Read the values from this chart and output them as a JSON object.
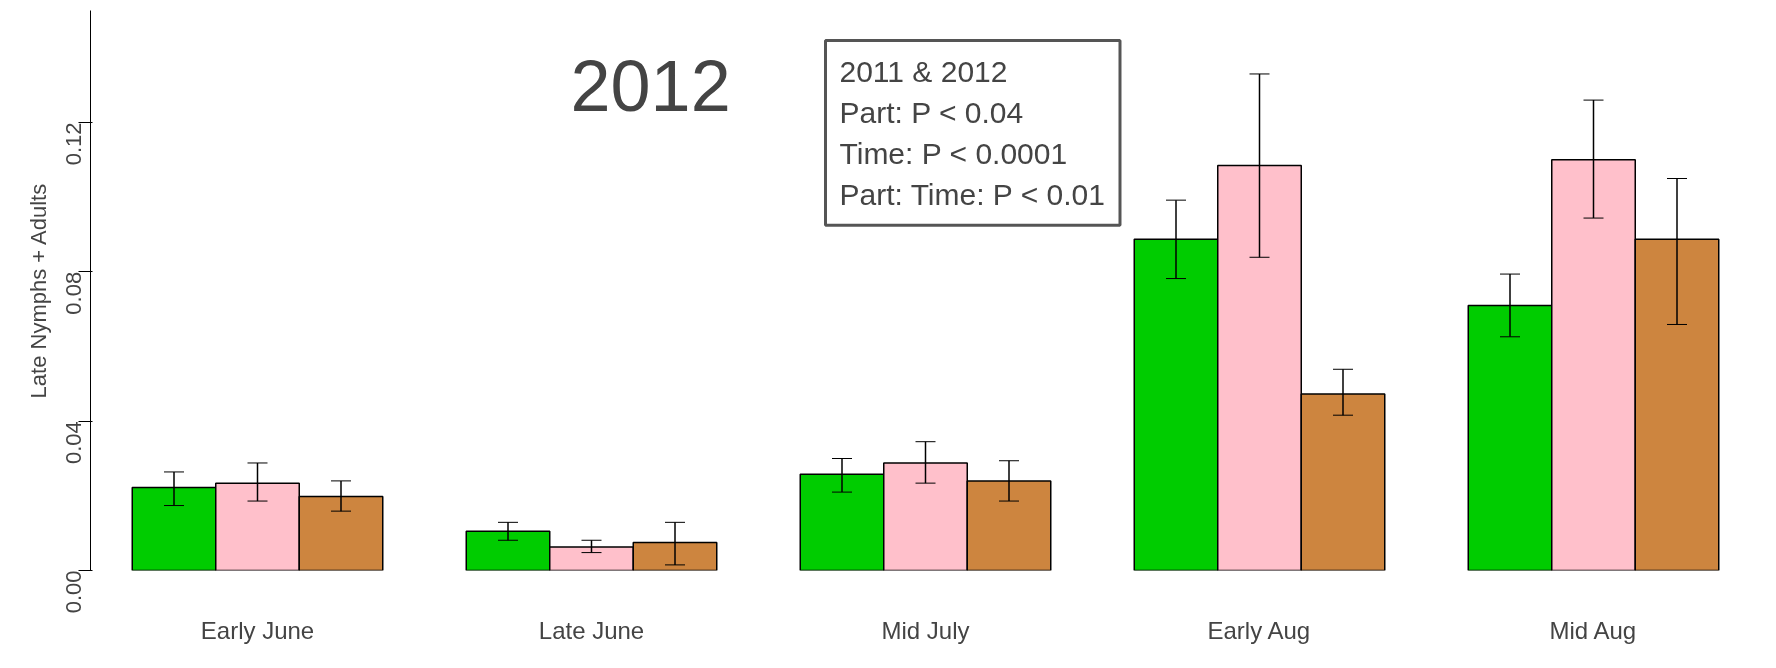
{
  "chart_data": {
    "type": "bar",
    "ylabel": "Late Nymphs + Adults",
    "categories": [
      "Early June",
      "Late June",
      "Mid July",
      "Early Aug",
      "Mid Aug"
    ],
    "series": [
      {
        "color": "#00cc00",
        "values": [
          0.0222,
          0.0105,
          0.0258,
          0.0887,
          0.071
        ],
        "errors": [
          [
            0.0174,
            0.0264
          ],
          [
            0.0081,
            0.0129
          ],
          [
            0.021,
            0.03
          ],
          [
            0.0782,
            0.0992
          ],
          [
            0.0626,
            0.0794
          ]
        ]
      },
      {
        "color": "#ffc0cb",
        "values": [
          0.0234,
          0.0063,
          0.0288,
          0.1085,
          0.11
        ],
        "errors": [
          [
            0.0186,
            0.0288
          ],
          [
            0.0048,
            0.0081
          ],
          [
            0.0234,
            0.0345
          ],
          [
            0.0839,
            0.133
          ],
          [
            0.0944,
            0.126
          ]
        ]
      },
      {
        "color": "#cd853f",
        "values": [
          0.0198,
          0.0075,
          0.024,
          0.0473,
          0.0887
        ],
        "errors": [
          [
            0.0159,
            0.024
          ],
          [
            0.0015,
            0.0129
          ],
          [
            0.0186,
            0.0294
          ],
          [
            0.0416,
            0.0539
          ],
          [
            0.0659,
            0.105
          ]
        ]
      }
    ],
    "ylim": [
      0,
      0.15
    ],
    "yticks": [
      {
        "value": 0,
        "label": "0.00"
      },
      {
        "value": 0.04,
        "label": "0.04"
      },
      {
        "value": 0.08,
        "label": "0.08"
      },
      {
        "value": 0.12,
        "label": "0.12"
      }
    ],
    "grid": false,
    "annotations": [
      "2012",
      "2011 & 2012\nPart: P < 0.04\nTime: P < 0.0001\nPart: Time: P < 0.01"
    ]
  }
}
